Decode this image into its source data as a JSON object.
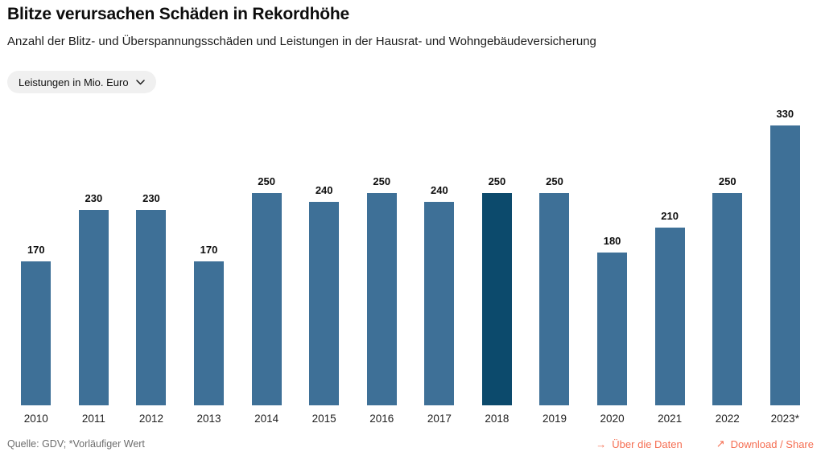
{
  "header": {
    "title": "Blitze verursachen Schäden in Rekordhöhe",
    "subtitle": "Anzahl der Blitz- und Überspannungsschäden und Leistungen in der Hausrat- und Wohngebäudeversicherung"
  },
  "controls": {
    "metric_dropdown": {
      "selected": "Leistungen in Mio. Euro"
    }
  },
  "chart_data": {
    "type": "bar",
    "categories": [
      "2010",
      "2011",
      "2012",
      "2013",
      "2014",
      "2015",
      "2016",
      "2017",
      "2018",
      "2019",
      "2020",
      "2021",
      "2022",
      "2023*"
    ],
    "values": [
      170,
      230,
      230,
      170,
      250,
      240,
      250,
      240,
      250,
      250,
      180,
      210,
      250,
      330
    ],
    "highlighted_category": "2018",
    "unit": "Leistungen in Mio. Euro",
    "ylim": [
      0,
      330
    ],
    "grid": false,
    "legend": false,
    "data_labels": true,
    "colors": {
      "bar": "#3e7097",
      "bar_highlighted": "#0c4a6c"
    }
  },
  "footer": {
    "source": "Quelle: GDV; *Vorläufiger Wert",
    "links": [
      {
        "label": "Über die Daten",
        "icon": "arrow-right-icon",
        "glyph": "→"
      },
      {
        "label": "Download / Share",
        "icon": "arrow-up-right-icon",
        "glyph": "↗"
      }
    ],
    "link_color": "#f56e52"
  }
}
